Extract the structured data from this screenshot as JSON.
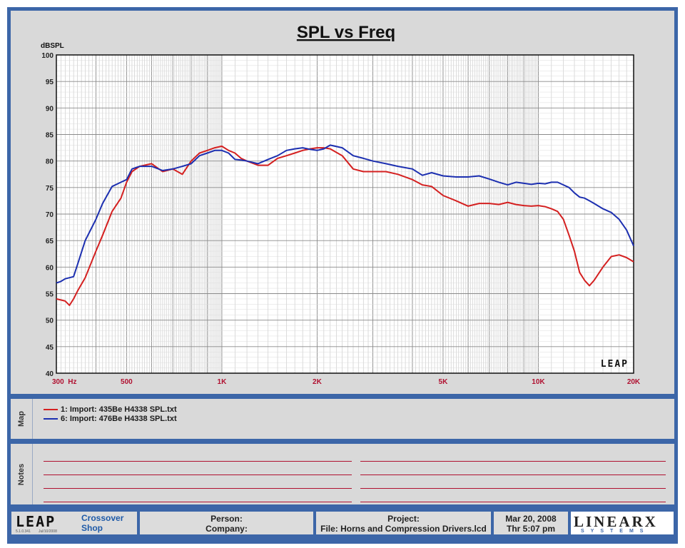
{
  "chart_data": {
    "type": "line",
    "title": "SPL vs Freq",
    "ylabel": "dBSPL",
    "xscale": "log",
    "xlim": [
      300,
      20000
    ],
    "ylim": [
      40,
      100
    ],
    "y_ticks": [
      40,
      45,
      50,
      55,
      60,
      65,
      70,
      75,
      80,
      85,
      90,
      95,
      100
    ],
    "x_ticks": [
      {
        "value": 300,
        "label": "300  Hz"
      },
      {
        "value": 500,
        "label": "500"
      },
      {
        "value": 1000,
        "label": "1K"
      },
      {
        "value": 2000,
        "label": "2K"
      },
      {
        "value": 5000,
        "label": "5K"
      },
      {
        "value": 10000,
        "label": "10K"
      },
      {
        "value": 20000,
        "label": "20K"
      }
    ],
    "grid": true,
    "series": [
      {
        "name": "1: Import: 435Be H4338 SPL.txt",
        "color": "#d42020",
        "x": [
          300,
          310,
          320,
          330,
          340,
          350,
          370,
          400,
          420,
          450,
          480,
          500,
          520,
          550,
          600,
          650,
          700,
          750,
          800,
          850,
          900,
          950,
          1000,
          1050,
          1100,
          1150,
          1200,
          1300,
          1400,
          1500,
          1600,
          1700,
          1800,
          1900,
          2000,
          2100,
          2200,
          2400,
          2600,
          2800,
          3000,
          3300,
          3600,
          4000,
          4300,
          4600,
          5000,
          5500,
          6000,
          6500,
          7000,
          7500,
          8000,
          8500,
          9000,
          9500,
          10000,
          10500,
          11000,
          11500,
          12000,
          12500,
          13000,
          13500,
          14000,
          14500,
          15000,
          16000,
          17000,
          18000,
          19000,
          20000
        ],
        "y": [
          54,
          53.8,
          53.6,
          52.8,
          54,
          55.5,
          58,
          63,
          66,
          70.5,
          73,
          76,
          78,
          79,
          79.5,
          78,
          78.5,
          77.5,
          80,
          81.5,
          82,
          82.5,
          82.8,
          82,
          81.5,
          80.5,
          80,
          79.2,
          79.2,
          80.5,
          81,
          81.5,
          82,
          82.3,
          82.5,
          82.5,
          82.3,
          81,
          78.5,
          78,
          78,
          78,
          77.5,
          76.5,
          75.5,
          75.2,
          73.5,
          72.5,
          71.5,
          72,
          72,
          71.8,
          72.2,
          71.8,
          71.6,
          71.5,
          71.6,
          71.4,
          71,
          70.5,
          69,
          66,
          63,
          59,
          57.5,
          56.5,
          57.5,
          60,
          62,
          62.3,
          61.8,
          61
        ]
      },
      {
        "name": "6: Import: 476Be H4338 SPL.txt",
        "color": "#1c2fb0",
        "x": [
          300,
          310,
          320,
          330,
          340,
          350,
          370,
          400,
          420,
          450,
          480,
          500,
          520,
          550,
          600,
          650,
          700,
          750,
          800,
          850,
          900,
          950,
          1000,
          1050,
          1100,
          1150,
          1200,
          1300,
          1400,
          1500,
          1600,
          1700,
          1800,
          1900,
          2000,
          2100,
          2200,
          2400,
          2600,
          2800,
          3000,
          3300,
          3600,
          4000,
          4300,
          4600,
          5000,
          5500,
          6000,
          6500,
          7000,
          7500,
          8000,
          8500,
          9000,
          9500,
          10000,
          10500,
          11000,
          11500,
          12000,
          12500,
          13000,
          13500,
          14000,
          14500,
          15000,
          16000,
          17000,
          18000,
          19000,
          20000
        ],
        "y": [
          57,
          57.3,
          57.8,
          58,
          58.2,
          60.5,
          65,
          69,
          72,
          75.2,
          76,
          76.5,
          78.5,
          79,
          79,
          78.2,
          78.5,
          79,
          79.5,
          81,
          81.5,
          82,
          82,
          81.5,
          80.3,
          80.2,
          80,
          79.5,
          80.3,
          81,
          82,
          82.3,
          82.5,
          82.2,
          82,
          82.3,
          83,
          82.5,
          81,
          80.5,
          80,
          79.5,
          79,
          78.5,
          77.3,
          77.8,
          77.2,
          77,
          77,
          77.2,
          76.6,
          76,
          75.5,
          76,
          75.8,
          75.6,
          75.8,
          75.7,
          76,
          76,
          75.5,
          75,
          74,
          73.2,
          73,
          72.5,
          72,
          71,
          70.3,
          69,
          67,
          64
        ]
      }
    ]
  },
  "map": {
    "label": "Map"
  },
  "notes": {
    "label": "Notes"
  },
  "footer": {
    "logo_text": "LEAP",
    "version": "5.1.0.341",
    "version_date": "Jul/10/2008",
    "product_line1": "Crossover",
    "product_line2": "Shop",
    "person_label": "Person:",
    "company_label": "Company:",
    "project_label": "Project:",
    "file_label": "File: Horns and Compression Drivers.lcd",
    "date": "Mar 20, 2008",
    "time": "Thr  5:07 pm",
    "brand": "LINEARX",
    "brand_sub": "SYSTEMS"
  },
  "watermark": "LEAP",
  "colors": {
    "frame": "#3c66a8",
    "panel": "#d9d9d9",
    "tick_label": "#b01030",
    "notes_line": "#b01030"
  }
}
